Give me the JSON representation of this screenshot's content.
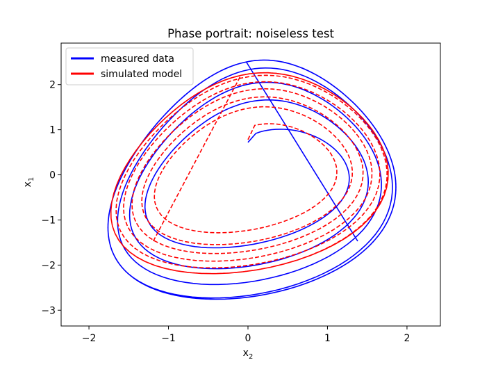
{
  "chart_data": {
    "type": "line",
    "title": "Phase portrait: noiseless test",
    "xlabel": "x",
    "xlabel_sub": "2",
    "ylabel": "x",
    "ylabel_sub": "1",
    "xlim": [
      -2.35,
      2.42
    ],
    "ylim": [
      -3.35,
      2.92
    ],
    "x_ticks": [
      -2,
      -1,
      0,
      1,
      2
    ],
    "x_tick_labels": [
      "−2",
      "−1",
      "0",
      "1",
      "2"
    ],
    "y_ticks": [
      2,
      1,
      0,
      -1,
      -2,
      -3
    ],
    "y_tick_labels": [
      "2",
      "1",
      "0",
      "−1",
      "−2",
      "−3"
    ],
    "grid": false,
    "legend_position": "top-left",
    "series": [
      {
        "name": "measured data",
        "color": "#0000ff",
        "style": "solid",
        "loops": 8,
        "start": [
          0.0,
          0.72
        ],
        "end": [
          1.38,
          -1.47
        ],
        "amp_x_start": 1.05,
        "amp_x_end": 1.75,
        "amp_y_start": 1.0,
        "amp_y_end": 2.75,
        "center": [
          0.05,
          -0.1
        ]
      },
      {
        "name": "simulated model",
        "color": "#ff0000",
        "style": "dashed",
        "loops": 12,
        "start": [
          0.0,
          0.78
        ],
        "end": [
          -1.2,
          -1.5
        ],
        "amp_x_start": 0.95,
        "amp_x_end": 1.7,
        "amp_y_start": 1.05,
        "amp_y_end": 2.3,
        "center": [
          0.02,
          0.05
        ]
      }
    ]
  }
}
